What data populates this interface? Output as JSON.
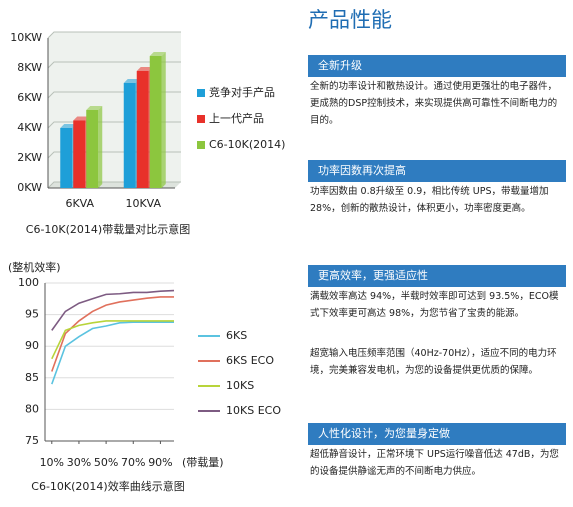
{
  "chart_data": [
    {
      "type": "bar",
      "caption": "C6-10K(2014)带载量对比示意图",
      "categories": [
        "6KVA",
        "10KVA"
      ],
      "series": [
        {
          "name": "竞争对手产品",
          "color": "#1e9fd8",
          "values": [
            4,
            7
          ]
        },
        {
          "name": "上一代产品",
          "color": "#e8312a",
          "values": [
            4.5,
            7.8
          ]
        },
        {
          "name": "C6-10K(2014)",
          "color": "#8cc63e",
          "values": [
            5.2,
            8.8
          ]
        }
      ],
      "ylim": [
        0,
        10
      ],
      "yticks": [
        {
          "value": 0,
          "label": "0KW"
        },
        {
          "value": 2,
          "label": "2KW"
        },
        {
          "value": 4,
          "label": "4KW"
        },
        {
          "value": 6,
          "label": "6KW"
        },
        {
          "value": 8,
          "label": "8KW"
        },
        {
          "value": 10,
          "label": "10KW"
        }
      ],
      "grid": true
    },
    {
      "type": "line",
      "caption": "C6-10K(2014)效率曲线示意图",
      "y_label": "(整机效率)",
      "x_label": "(带载量)",
      "x": [
        10,
        20,
        30,
        40,
        50,
        60,
        70,
        80,
        90,
        100
      ],
      "series": [
        {
          "name": "6KS",
          "color": "#5bc3e0",
          "values": [
            84,
            90,
            91.5,
            92.8,
            93.2,
            93.7,
            93.8,
            93.8,
            93.8,
            93.8
          ]
        },
        {
          "name": "6KS ECO",
          "color": "#e0705c",
          "values": [
            86,
            92,
            94,
            95.5,
            96.5,
            97,
            97.3,
            97.6,
            97.8,
            97.8
          ]
        },
        {
          "name": "10KS",
          "color": "#b8d43a",
          "values": [
            88,
            92.5,
            93.3,
            93.7,
            94,
            94,
            94,
            94,
            94,
            94
          ]
        },
        {
          "name": "10KS ECO",
          "color": "#7d5b82",
          "values": [
            92.5,
            95.5,
            96.8,
            97.5,
            98.2,
            98.3,
            98.5,
            98.5,
            98.7,
            98.8
          ]
        }
      ],
      "xlim": [
        5,
        100
      ],
      "ylim": [
        75,
        100
      ],
      "xticks": [
        {
          "value": 10,
          "label": "10%"
        },
        {
          "value": 30,
          "label": "30%"
        },
        {
          "value": 50,
          "label": "50%"
        },
        {
          "value": 70,
          "label": "70%"
        },
        {
          "value": 90,
          "label": "90%"
        }
      ],
      "yticks": [
        75,
        80,
        85,
        90,
        95,
        100
      ]
    }
  ],
  "document": {
    "title": "产品性能",
    "sections": [
      {
        "heading": "全新升级",
        "paragraphs": [
          "全新的功率设计和散热设计。通过使用更强壮的电子器件，更成熟的DSP控制技术，来实现提供高可靠性不间断电力的目的。"
        ]
      },
      {
        "heading": "功率因数再次提高",
        "paragraphs": [
          "功率因数由 0.8升级至 0.9，相比传统 UPS，带载量增加 28%，创新的散热设计，体积更小，功率密度更高。"
        ]
      },
      {
        "heading": "更高效率，更强适应性",
        "paragraphs": [
          "满载效率高达 94%，半载时效率即可达到 93.5%，ECO模式下效率更可高达 98%，为您节省了宝贵的能源。",
          "超宽输入电压频率范围（40Hz-70Hz），适应不同的电力环境，完美兼容发电机，为您的设备提供更优质的保障。"
        ]
      },
      {
        "heading": "人性化设计，为您量身定做",
        "paragraphs": [
          "超低静音设计，正常环境下 UPS运行噪音低达 47dB，为您的设备提供静谧无声的不间断电力供应。"
        ]
      }
    ]
  }
}
